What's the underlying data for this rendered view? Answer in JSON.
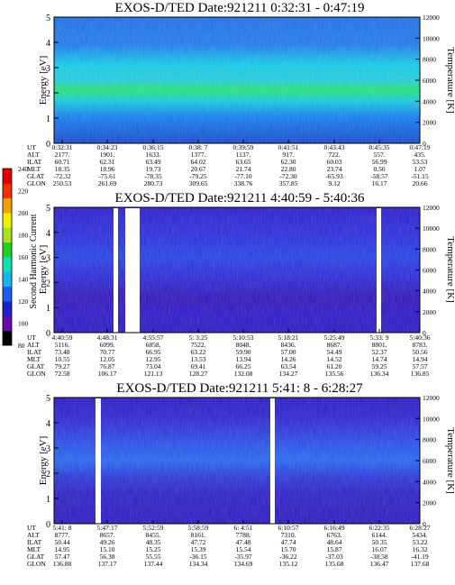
{
  "chart_data": [
    {
      "type": "heatmap",
      "title": "EXOS-D/TED   Date:921211  0:32:31 - 0:47:19",
      "ylabel": "Energy [eV]",
      "ylabel_right": "Temperature [K]",
      "ylim": [
        0,
        5
      ],
      "ylim_right": [
        0,
        12000
      ],
      "y_ticks": [
        "0",
        "1",
        "2",
        "3",
        "4",
        "5"
      ],
      "y_right_ticks": [
        "0",
        "2000",
        "4000",
        "6000",
        "8000",
        "10000",
        "12000"
      ],
      "orbit_rows": [
        "UT",
        "ALT",
        "ILAT",
        "MLT",
        "GLAT",
        "GLON"
      ],
      "orbit_columns": [
        [
          "0:32:31",
          "2177.",
          "60.71",
          "18.35",
          "-72.32",
          "250.53"
        ],
        [
          "0:34:23",
          "1901.",
          "62.31",
          "18.96",
          "-75.61",
          "261.69"
        ],
        [
          "0:36:15",
          "1633.",
          "63.49",
          "19.73",
          "-78.35",
          "280.73"
        ],
        [
          "0:38: 7",
          "1377.",
          "64.02",
          "20.67",
          "-79.25",
          "309.65"
        ],
        [
          "0:39:59",
          "1137.",
          "63.65",
          "21.74",
          "-77.10",
          "338.76"
        ],
        [
          "0:41:51",
          "917.",
          "62.30",
          "22.80",
          "-72.30",
          "357.85"
        ],
        [
          "0:43:43",
          "722.",
          "60.03",
          "23.74",
          "-65.93",
          "9.12"
        ],
        [
          "0:45:35",
          "557.",
          "56.99",
          "0.50",
          "-58.57",
          "16.17"
        ],
        [
          "0:47:19",
          "435.",
          "53.53",
          "1.07",
          "-51.15",
          "20.66"
        ]
      ]
    },
    {
      "type": "heatmap",
      "title": "EXOS-D/TED   Date:921211  4:40:59 - 5:40:36",
      "ylabel": "Energy [eV]",
      "ylabel_right": "Temperature [K]",
      "ylim": [
        0,
        5
      ],
      "ylim_right": [
        0,
        12000
      ],
      "y_ticks": [
        "0",
        "1",
        "2",
        "3",
        "4",
        "5"
      ],
      "y_right_ticks": [
        "0",
        "2000",
        "4000",
        "6000",
        "8000",
        "10000",
        "12000"
      ],
      "orbit_rows": [
        "UT",
        "ALT",
        "ILAT",
        "MLT",
        "GLAT",
        "GLON"
      ],
      "orbit_columns": [
        [
          "4:40:59",
          "5116.",
          "73.48",
          "10.55",
          "79.27",
          "72.58"
        ],
        [
          "4:48:31",
          "6099.",
          "70.77",
          "12.05",
          "76.87",
          "106.17"
        ],
        [
          "4:55:57",
          "6858.",
          "66.95",
          "12.95",
          "73.04",
          "121.13"
        ],
        [
          "5: 3:25",
          "7522.",
          "63.22",
          "13.53",
          "69.41",
          "128.27"
        ],
        [
          "5:10:53",
          "8048.",
          "59.90",
          "13.94",
          "66.25",
          "132.08"
        ],
        [
          "5:18:21",
          "8436.",
          "57.00",
          "14.26",
          "63.54",
          "134.27"
        ],
        [
          "5:25:49",
          "8687.",
          "54.49",
          "14.52",
          "61.20",
          "135.56"
        ],
        [
          "5:33: 9",
          "8801.",
          "52.37",
          "14.74",
          "59.25",
          "136.34"
        ],
        [
          "5:40:36",
          "8783.",
          "50.56",
          "14.94",
          "57.57",
          "136.85"
        ]
      ]
    },
    {
      "type": "heatmap",
      "title": "EXOS-D/TED   Date:921211  5:41: 8 - 6:28:27",
      "ylabel": "Energy [eV]",
      "ylabel_right": "Temperature [K]",
      "ylim": [
        0,
        5
      ],
      "ylim_right": [
        0,
        12000
      ],
      "y_ticks": [
        "0",
        "1",
        "2",
        "3",
        "4",
        "5"
      ],
      "y_right_ticks": [
        "0",
        "2000",
        "4000",
        "6000",
        "8000",
        "10000",
        "12000"
      ],
      "orbit_rows": [
        "UT",
        "ALT",
        "ILAT",
        "MLT",
        "GLAT",
        "GLON"
      ],
      "orbit_columns": [
        [
          "5:41: 8",
          "8777.",
          "50.44",
          "14.95",
          "57.47",
          "136.88"
        ],
        [
          "5:47:17",
          "8657.",
          "49.26",
          "15.10",
          "56.38",
          "137.17"
        ],
        [
          "5:52:59",
          "8455.",
          "48.35",
          "15.25",
          "55.55",
          "137.44"
        ],
        [
          "5:58:59",
          "8161.",
          "47.72",
          "15.39",
          "-36.15",
          "134.34"
        ],
        [
          "6: 4:51",
          "7788.",
          "47.48",
          "15.54",
          "-35.97",
          "134.69"
        ],
        [
          "6:10:57",
          "7310.",
          "47.74",
          "15.70",
          "-36.22",
          "135.12"
        ],
        [
          "6:16:49",
          "6763.",
          "48.64",
          "15.87",
          "-37.03",
          "135.68"
        ],
        [
          "6:22:35",
          "6144.",
          "50.35",
          "16.07",
          "-38.58",
          "136.47"
        ],
        [
          "6:28:27",
          "5434.",
          "53.22",
          "16.32",
          "-41.19",
          "137.68"
        ]
      ]
    }
  ],
  "colorbar": {
    "label": "Second Harmonic Current",
    "ticks": [
      "80",
      "100",
      "120",
      "140",
      "160",
      "180",
      "200",
      "220",
      "240"
    ],
    "colors": [
      "#000000",
      "#6a0aa8",
      "#2020c8",
      "#1a5ef0",
      "#16b4f0",
      "#10e0b0",
      "#20d020",
      "#a8e020",
      "#f0f000",
      "#f0a000",
      "#f03000",
      "#e00000"
    ]
  }
}
